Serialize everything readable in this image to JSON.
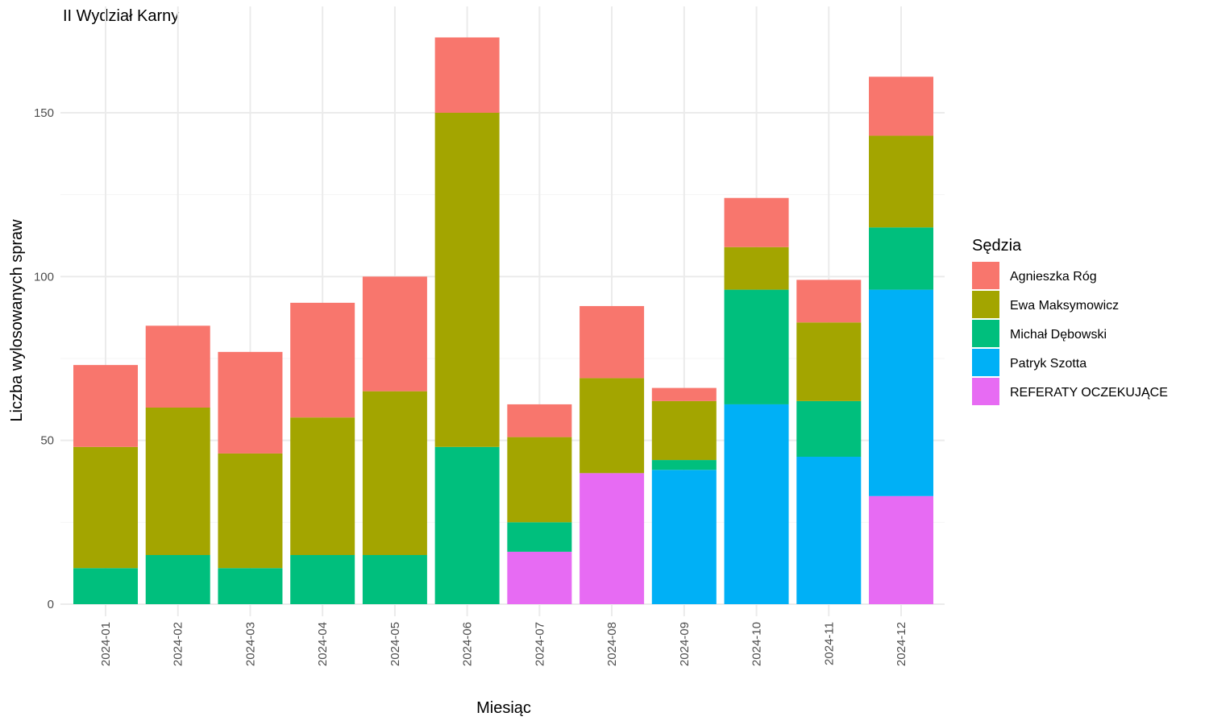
{
  "chart_data": {
    "type": "bar",
    "stacked": true,
    "title": "II Wydział Karny",
    "xlabel": "Miesiąc",
    "ylabel": "Liczba wylosowanych spraw",
    "ylim": [
      0,
      175
    ],
    "yticks": [
      0,
      50,
      100,
      150
    ],
    "grid": true,
    "legend_title": "Sędzia",
    "legend_position": "right",
    "categories": [
      "2024-01",
      "2024-02",
      "2024-03",
      "2024-04",
      "2024-05",
      "2024-06",
      "2024-07",
      "2024-08",
      "2024-09",
      "2024-10",
      "2024-11",
      "2024-12"
    ],
    "series": [
      {
        "name": "REFERATY OCZEKUJĄCE",
        "color": "#E76BF3",
        "values": [
          0,
          0,
          0,
          0,
          0,
          0,
          16,
          40,
          0,
          0,
          0,
          33
        ]
      },
      {
        "name": "Patryk Szotta",
        "color": "#00B0F6",
        "values": [
          0,
          0,
          0,
          0,
          0,
          0,
          0,
          0,
          41,
          61,
          45,
          63
        ]
      },
      {
        "name": "Michał Dębowski",
        "color": "#00BF7D",
        "values": [
          11,
          15,
          11,
          15,
          15,
          48,
          9,
          0,
          3,
          35,
          17,
          19
        ]
      },
      {
        "name": "Ewa Maksymowicz",
        "color": "#A3A500",
        "values": [
          37,
          45,
          35,
          42,
          50,
          102,
          26,
          29,
          18,
          13,
          24,
          28
        ]
      },
      {
        "name": "Agnieszka Róg",
        "color": "#F8766D",
        "values": [
          25,
          25,
          31,
          35,
          35,
          23,
          10,
          22,
          4,
          15,
          13,
          18
        ]
      }
    ],
    "legend_order": [
      "Agnieszka Róg",
      "Ewa Maksymowicz",
      "Michał Dębowski",
      "Patryk Szotta",
      "REFERATY OCZEKUJĄCE"
    ]
  }
}
